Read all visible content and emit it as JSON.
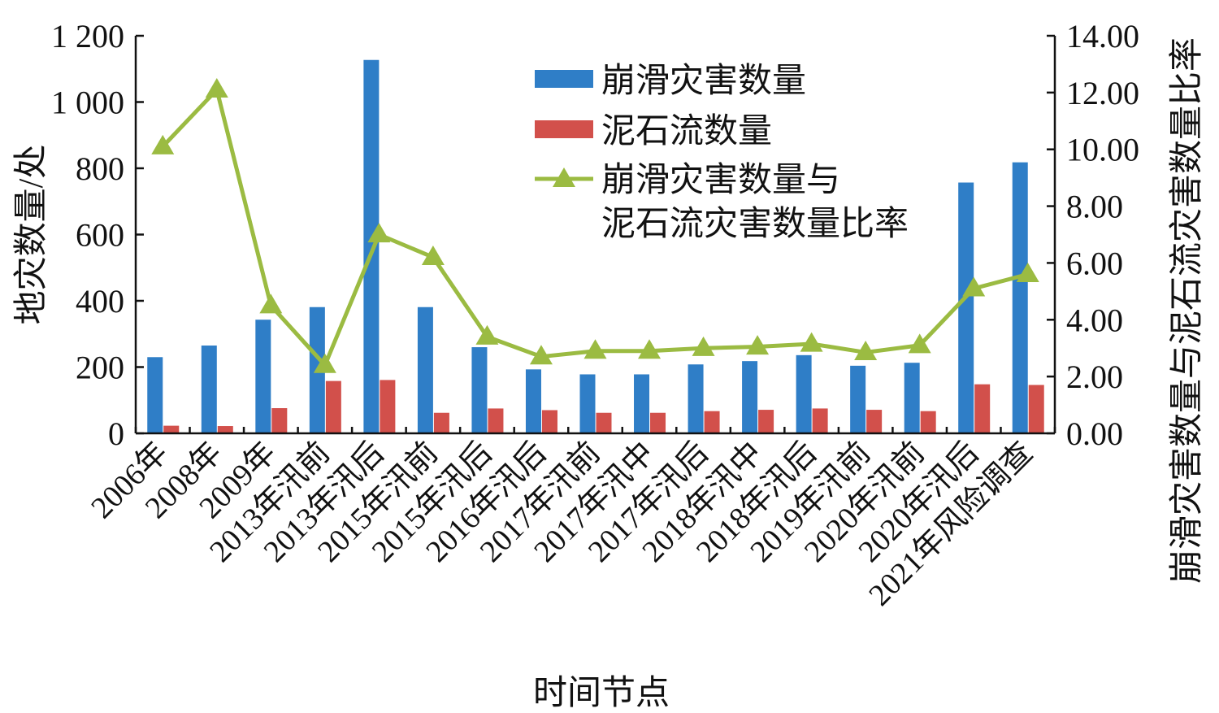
{
  "chart_data": {
    "type": "bar",
    "categories": [
      "2006年",
      "2008年",
      "2009年",
      "2013年汛前",
      "2013年汛后",
      "2015年汛前",
      "2015年汛后",
      "2016年汛后",
      "2017年汛前",
      "2017年汛中",
      "2017年汛后",
      "2018年汛中",
      "2018年汛后",
      "2019年汛前",
      "2020年汛前",
      "2020年汛后",
      "2021年风险调查"
    ],
    "series": [
      {
        "name": "崩滑灾害数量",
        "type": "bar",
        "axis": "left",
        "color": "#2f7ec7",
        "values": [
          230,
          265,
          343,
          381,
          1127,
          381,
          260,
          193,
          178,
          178,
          208,
          218,
          236,
          204,
          213,
          757,
          818
        ]
      },
      {
        "name": "泥石流数量",
        "type": "bar",
        "axis": "left",
        "color": "#d2504b",
        "values": [
          23,
          22,
          76,
          158,
          161,
          62,
          75,
          70,
          62,
          62,
          67,
          71,
          75,
          71,
          67,
          148,
          146
        ]
      },
      {
        "name_lines": [
          "崩滑灾害数量与",
          "泥石流灾害数量比率"
        ],
        "type": "line",
        "axis": "right",
        "color": "#9bbb42",
        "values": [
          10.1,
          12.1,
          4.5,
          2.4,
          7.0,
          6.2,
          3.4,
          2.7,
          2.9,
          2.9,
          3.0,
          3.05,
          3.15,
          2.85,
          3.1,
          5.1,
          5.6
        ]
      }
    ],
    "ylabel": "地灾数量/处",
    "y2label": "崩滑灾害数量与泥石流灾害数量比率",
    "xlabel": "时间节点",
    "ylim": [
      0,
      1200
    ],
    "y2lim": [
      0,
      14
    ],
    "yticks": [
      0,
      200,
      400,
      600,
      800,
      1000,
      1200
    ],
    "yticklabels": [
      "0",
      "200",
      "400",
      "600",
      "800",
      "1 000",
      "1 200"
    ],
    "y2ticks": [
      0,
      2,
      4,
      6,
      8,
      10,
      12,
      14
    ],
    "y2ticklabels": [
      "0.00",
      "2.00",
      "4.00",
      "6.00",
      "8.00",
      "10.00",
      "12.00",
      "14.00"
    ],
    "legend_position": "top-right",
    "grid": false
  }
}
